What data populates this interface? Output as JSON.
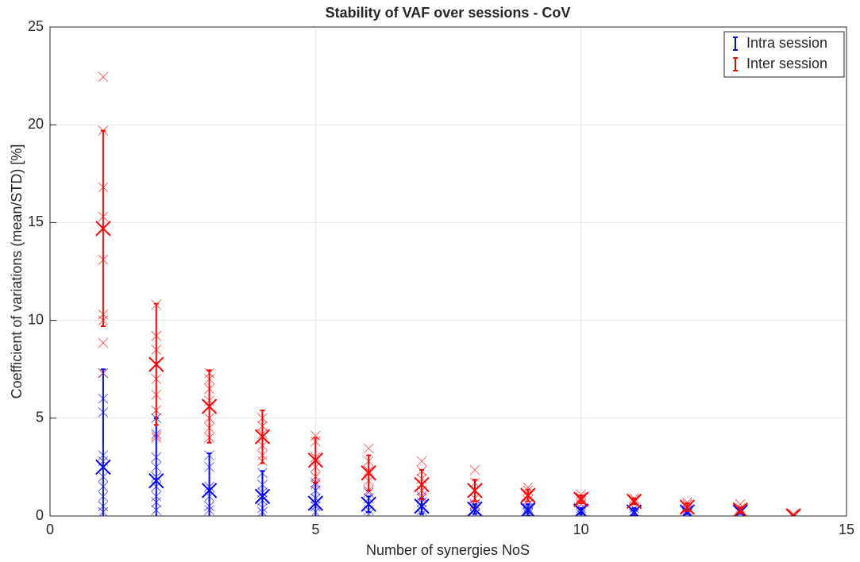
{
  "chart_data": {
    "type": "errorbar-scatter",
    "title": "Stability of VAF over sessions - CoV",
    "x_label": "Number of synergies  NoS",
    "y_label": "Coefficient of variations (mean/STD) [%]",
    "x": [
      1,
      2,
      3,
      4,
      5,
      6,
      7,
      8,
      9,
      10,
      11,
      12,
      13,
      14
    ],
    "xlim": [
      0,
      15
    ],
    "xticks": [
      0,
      5,
      10,
      15
    ],
    "ylim": [
      0,
      25
    ],
    "yticks": [
      0,
      5,
      10,
      15,
      20,
      25
    ],
    "grid": true,
    "legend": "top-right",
    "series": [
      {
        "name": "Intra session",
        "color": "#0000ff",
        "values": [
          2.5,
          1.8,
          1.3,
          1.0,
          0.65,
          0.6,
          0.5,
          0.35,
          0.3,
          0.25,
          0.2,
          0.2,
          0.2,
          0.0
        ],
        "errors": [
          5.0,
          3.2,
          1.9,
          1.3,
          1.05,
          0.4,
          0.4,
          0.25,
          0.3,
          0.15,
          0.2,
          0.1,
          0.1,
          0.0
        ],
        "samples": [
          [
            7.3,
            6.0,
            5.3,
            3.1,
            2.8,
            2.0,
            1.5,
            1.0,
            0.5,
            0.2
          ],
          [
            5.0,
            4.2,
            3.0,
            2.5,
            2.0,
            1.5,
            1.0,
            0.7,
            0.3
          ],
          [
            3.1,
            2.5,
            1.5,
            1.0,
            0.5,
            0.3
          ],
          [
            2.2,
            1.6,
            1.2,
            0.8,
            0.4,
            0.2
          ],
          [
            1.7,
            1.3,
            0.9,
            0.5,
            0.2
          ],
          [
            1.2,
            0.9,
            0.6,
            0.3,
            0.1
          ],
          [
            1.0,
            0.7,
            0.5,
            0.3,
            0.1
          ],
          [
            0.6,
            0.5,
            0.3,
            0.1
          ],
          [
            0.6,
            0.4,
            0.2,
            0.1
          ],
          [
            0.4,
            0.3,
            0.1
          ],
          [
            0.4,
            0.2,
            0.1
          ],
          [
            0.3,
            0.2,
            0.1
          ],
          [
            0.3,
            0.2
          ],
          [
            0.0
          ]
        ]
      },
      {
        "name": "Inter session",
        "color": "#ff0000",
        "values": [
          14.7,
          7.75,
          5.6,
          4.05,
          2.85,
          2.2,
          1.6,
          1.3,
          1.05,
          0.85,
          0.75,
          0.45,
          0.3,
          0.0
        ],
        "errors": [
          5.0,
          3.1,
          1.85,
          1.35,
          1.15,
          0.9,
          0.75,
          0.55,
          0.3,
          0.2,
          0.15,
          0.2,
          0.15,
          0.0
        ],
        "samples": [
          [
            22.45,
            19.7,
            16.8,
            15.3,
            13.1,
            10.3,
            10.0,
            8.85,
            7.3
          ],
          [
            10.8,
            9.2,
            8.5,
            7.0,
            6.2,
            5.4,
            4.1,
            4.0
          ],
          [
            7.3,
            7.0,
            6.5,
            5.9,
            5.0,
            4.5,
            4.0
          ],
          [
            5.0,
            4.6,
            4.2,
            3.6,
            3.1,
            2.8
          ],
          [
            4.1,
            3.8,
            3.0,
            2.5,
            2.0,
            1.6
          ],
          [
            3.45,
            2.8,
            2.3,
            1.8,
            1.3
          ],
          [
            2.8,
            2.3,
            1.9,
            1.3,
            0.9
          ],
          [
            2.35,
            1.7,
            1.3,
            0.9,
            0.6
          ],
          [
            1.45,
            1.3,
            1.0,
            0.8
          ],
          [
            1.1,
            0.95,
            0.8,
            0.6
          ],
          [
            0.9,
            0.8,
            0.7
          ],
          [
            0.7,
            0.6,
            0.4
          ],
          [
            0.6,
            0.4,
            0.2
          ],
          [
            0.1,
            0.0
          ]
        ]
      }
    ]
  }
}
